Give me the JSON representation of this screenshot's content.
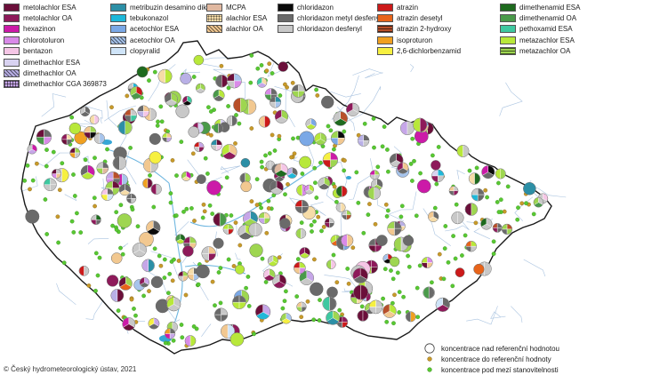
{
  "legend": [
    {
      "label": "metolachlor ESA",
      "color": "#6b0f3a",
      "pattern": "solid"
    },
    {
      "label": "metolachlor OA",
      "color": "#8e1a5a",
      "pattern": "solid"
    },
    {
      "label": "hexazinon",
      "color": "#cc1aa8",
      "pattern": "solid"
    },
    {
      "label": "chlorotoluron",
      "color": "#d98ae8",
      "pattern": "solid"
    },
    {
      "label": "bentazon",
      "color": "#f5c6e6",
      "pattern": "solid"
    },
    {
      "label": "dimethachlor ESA",
      "color": "#d8d2f0",
      "pattern": "solid"
    },
    {
      "label": "dimethachlor OA",
      "color": "#b9b0e6",
      "pattern": "hatch"
    },
    {
      "label": "dimethachlor CGA 369873",
      "color": "#c6a6e8",
      "pattern": "grid"
    },
    {
      "label": "metribuzin desamino diketo",
      "color": "#2c8fa6",
      "pattern": "solid"
    },
    {
      "label": "tebukonazol",
      "color": "#1fb8d9",
      "pattern": "solid"
    },
    {
      "label": "acetochlor ESA",
      "color": "#7aa8e6",
      "pattern": "solid"
    },
    {
      "label": "acetochlor OA",
      "color": "#a7c4ec",
      "pattern": "hatch"
    },
    {
      "label": "clopyralid",
      "color": "#cfe4f8",
      "pattern": "solid"
    },
    {
      "label": "MCPA",
      "color": "#e0b8a0",
      "pattern": "solid"
    },
    {
      "label": "alachlor ESA",
      "color": "#f6dca8",
      "pattern": "dots"
    },
    {
      "label": "alachlor OA",
      "color": "#f2c890",
      "pattern": "hatch"
    },
    {
      "label": "chloridazon",
      "color": "#0a0a0a",
      "pattern": "solid"
    },
    {
      "label": "chloridazon metyl desfenyl",
      "color": "#6a6a6a",
      "pattern": "solid"
    },
    {
      "label": "chloridazon desfenyl",
      "color": "#c8c8c8",
      "pattern": "solid"
    },
    {
      "label": "atrazin",
      "color": "#cc1a1a",
      "pattern": "solid"
    },
    {
      "label": "atrazin desetyl",
      "color": "#e8641a",
      "pattern": "solid"
    },
    {
      "label": "atrazin 2-hydroxy",
      "color": "#b8502a",
      "pattern": "hline"
    },
    {
      "label": "isoproturon",
      "color": "#f0a020",
      "pattern": "solid"
    },
    {
      "label": "2,6-dichlorbenzamid",
      "color": "#f6f040",
      "pattern": "solid"
    },
    {
      "label": "dimethenamid ESA",
      "color": "#1e6a1e",
      "pattern": "solid"
    },
    {
      "label": "dimethenamid OA",
      "color": "#4a9a4a",
      "pattern": "solid"
    },
    {
      "label": "pethoxamid ESA",
      "color": "#3ec8a0",
      "pattern": "solid"
    },
    {
      "label": "metazachlor ESA",
      "color": "#b8e83a",
      "pattern": "solid"
    },
    {
      "label": "metazachlor OA",
      "color": "#9ed650",
      "pattern": "hline"
    }
  ],
  "bottom_legend": [
    {
      "label": "koncentrace nad referenční hodnotou",
      "symbol": "large-circle"
    },
    {
      "label": "koncentrace do referenční hodnoty",
      "symbol": "small-orange-dot"
    },
    {
      "label": "koncentrace pod mezí stanovitelnosti",
      "symbol": "small-green-dot"
    }
  ],
  "copyright": "© Český hydrometeorologický ústav, 2021",
  "colors": {
    "border": "#1a1a1a",
    "river": "#a9c3e0",
    "major_river": "#6fb7e0",
    "lake": "#36a6d6",
    "below_limit_dot": "#58c832",
    "to_reference_dot": "#c89a2a"
  }
}
